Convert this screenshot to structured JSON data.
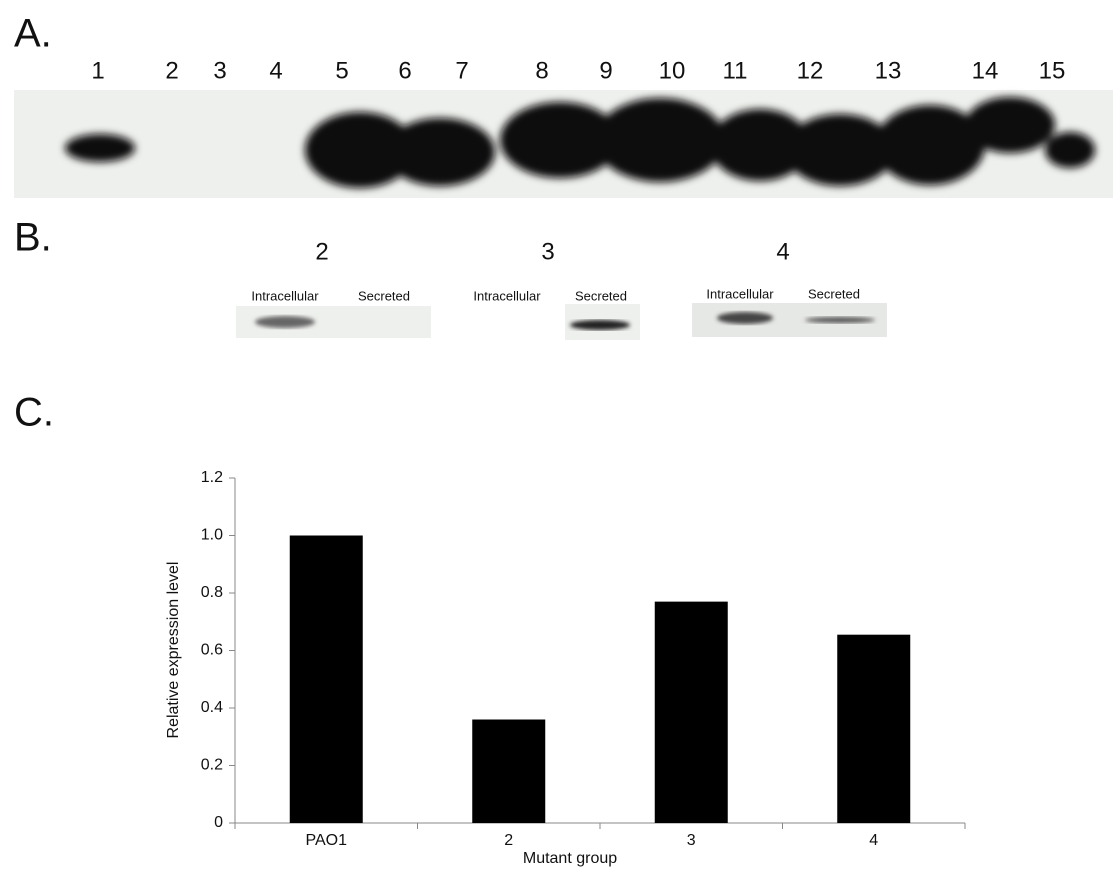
{
  "panel_a": {
    "label": "A.",
    "lanes": [
      "1",
      "2",
      "3",
      "4",
      "5",
      "6",
      "7",
      "8",
      "9",
      "10",
      "11",
      "12",
      "13",
      "14",
      "15"
    ]
  },
  "panel_b": {
    "label": "B.",
    "groups": [
      {
        "number": "2",
        "columns": [
          "Intracellular",
          "Secreted"
        ]
      },
      {
        "number": "3",
        "columns": [
          "Intracellular",
          "Secreted"
        ]
      },
      {
        "number": "4",
        "columns": [
          "Intracellular",
          "Secreted"
        ]
      }
    ]
  },
  "chart_data": {
    "type": "bar",
    "panel_label": "C.",
    "x_label": "Mutant group",
    "y_label": "Relative expression level",
    "categories": [
      "PAO1",
      "2",
      "3",
      "4"
    ],
    "values": [
      1.0,
      0.36,
      0.77,
      0.655
    ],
    "color": "#000000",
    "ylim": [
      0,
      1.2
    ],
    "yticks": [
      0,
      0.2,
      0.4,
      0.6,
      0.8,
      {
        "value": 1,
        "label": "1.0"
      },
      1.2
    ]
  }
}
